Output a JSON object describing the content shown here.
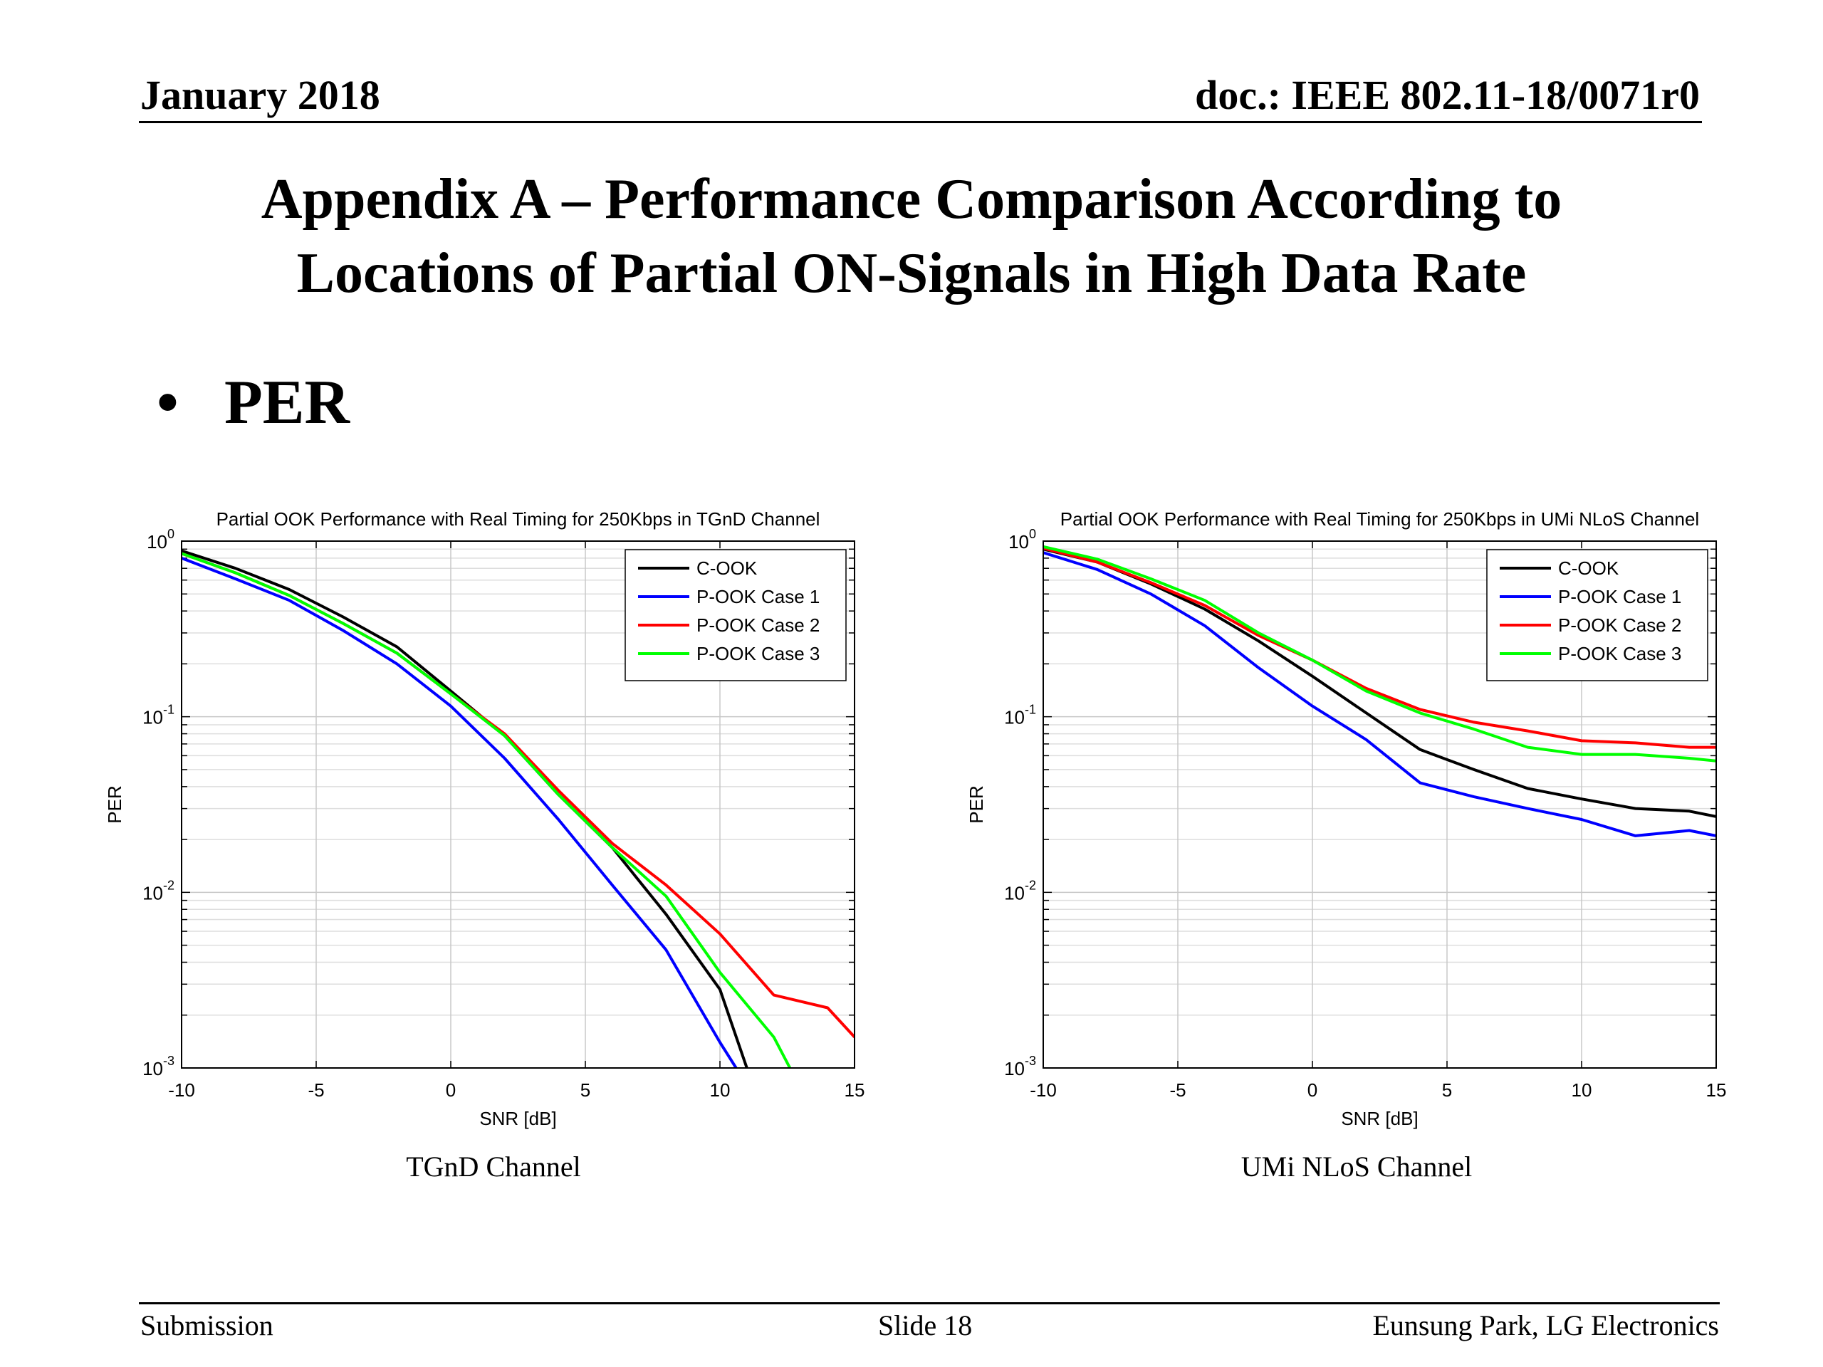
{
  "header": {
    "date": "January 2018",
    "doc": "doc.: IEEE 802.11-18/0071r0"
  },
  "title": {
    "line1": "Appendix A – Performance Comparison According to",
    "line2": "Locations of Partial ON-Signals in High Data Rate"
  },
  "bullet": {
    "marker": "•",
    "text": "PER"
  },
  "captions": {
    "left": "TGnD Channel",
    "right": "UMi NLoS Channel"
  },
  "footer": {
    "left": "Submission",
    "center": "Slide 18",
    "right": "Eunsung Park, LG Electronics"
  },
  "chart_data": [
    {
      "type": "line",
      "title": "Partial OOK Performance with Real Timing for 250Kbps in TGnD Channel",
      "xlabel": "SNR [dB]",
      "ylabel": "PER",
      "xlim": [
        -10,
        15
      ],
      "ylim": [
        0.001,
        1
      ],
      "yscale": "log",
      "grid": true,
      "legend_position": "top-right",
      "x_ticks": [
        "-10",
        "-5",
        "0",
        "5",
        "10",
        "15"
      ],
      "y_ticks": [
        {
          "base": "10",
          "exp": "0",
          "value": 1
        },
        {
          "base": "10",
          "exp": "-1",
          "value": 0.1
        },
        {
          "base": "10",
          "exp": "-2",
          "value": 0.01
        },
        {
          "base": "10",
          "exp": "-3",
          "value": 0.001
        }
      ],
      "series": [
        {
          "name": "C-OOK",
          "color": "#000000",
          "x": [
            -10,
            -8,
            -6,
            -4,
            -2,
            0,
            2,
            4,
            6,
            8,
            10,
            11
          ],
          "y": [
            0.88,
            0.7,
            0.53,
            0.37,
            0.25,
            0.14,
            0.078,
            0.036,
            0.018,
            0.0075,
            0.0028,
            0.001
          ]
        },
        {
          "name": "P-OOK Case 1",
          "color": "#0000ff",
          "x": [
            -10,
            -8,
            -6,
            -4,
            -2,
            0,
            2,
            4,
            6,
            8,
            10,
            10.6
          ],
          "y": [
            0.8,
            0.61,
            0.46,
            0.31,
            0.2,
            0.115,
            0.058,
            0.026,
            0.011,
            0.0047,
            0.0014,
            0.001
          ]
        },
        {
          "name": "P-OOK Case 2",
          "color": "#ff0000",
          "x": [
            -10,
            -8,
            -6,
            -4,
            -2,
            0,
            2,
            4,
            6,
            8,
            10,
            12,
            14,
            15
          ],
          "y": [
            0.85,
            0.66,
            0.49,
            0.34,
            0.23,
            0.135,
            0.08,
            0.038,
            0.019,
            0.011,
            0.0058,
            0.0026,
            0.0022,
            0.0015
          ]
        },
        {
          "name": "P-OOK Case 3",
          "color": "#00ff00",
          "x": [
            -10,
            -8,
            -6,
            -4,
            -2,
            0,
            2,
            4,
            6,
            8,
            10,
            12,
            12.6
          ],
          "y": [
            0.85,
            0.66,
            0.49,
            0.34,
            0.23,
            0.135,
            0.078,
            0.036,
            0.018,
            0.0095,
            0.0035,
            0.0015,
            0.001
          ]
        }
      ]
    },
    {
      "type": "line",
      "title": "Partial OOK Performance with Real Timing for 250Kbps in UMi NLoS Channel",
      "xlabel": "SNR [dB]",
      "ylabel": "PER",
      "xlim": [
        -10,
        15
      ],
      "ylim": [
        0.001,
        1
      ],
      "yscale": "log",
      "grid": true,
      "legend_position": "top-right",
      "x_ticks": [
        "-10",
        "-5",
        "0",
        "5",
        "10",
        "15"
      ],
      "y_ticks": [
        {
          "base": "10",
          "exp": "0",
          "value": 1
        },
        {
          "base": "10",
          "exp": "-1",
          "value": 0.1
        },
        {
          "base": "10",
          "exp": "-2",
          "value": 0.01
        },
        {
          "base": "10",
          "exp": "-3",
          "value": 0.001
        }
      ],
      "series": [
        {
          "name": "C-OOK",
          "color": "#000000",
          "x": [
            -10,
            -8,
            -6,
            -4,
            -2,
            0,
            2,
            4,
            6,
            8,
            10,
            12,
            14,
            15
          ],
          "y": [
            0.9,
            0.76,
            0.57,
            0.41,
            0.27,
            0.17,
            0.105,
            0.065,
            0.05,
            0.039,
            0.034,
            0.03,
            0.029,
            0.027
          ]
        },
        {
          "name": "P-OOK Case 1",
          "color": "#0000ff",
          "x": [
            -10,
            -8,
            -6,
            -4,
            -2,
            0,
            2,
            4,
            6,
            8,
            10,
            12,
            14,
            15
          ],
          "y": [
            0.86,
            0.69,
            0.5,
            0.33,
            0.19,
            0.115,
            0.074,
            0.042,
            0.035,
            0.03,
            0.026,
            0.021,
            0.0225,
            0.021
          ]
        },
        {
          "name": "P-OOK Case 2",
          "color": "#ff0000",
          "x": [
            -10,
            -8,
            -6,
            -4,
            -2,
            0,
            2,
            4,
            6,
            8,
            10,
            12,
            14,
            15
          ],
          "y": [
            0.91,
            0.76,
            0.58,
            0.43,
            0.29,
            0.21,
            0.145,
            0.11,
            0.093,
            0.083,
            0.073,
            0.071,
            0.067,
            0.067
          ]
        },
        {
          "name": "P-OOK Case 3",
          "color": "#00ff00",
          "x": [
            -10,
            -8,
            -6,
            -4,
            -2,
            0,
            2,
            4,
            6,
            8,
            10,
            12,
            14,
            15
          ],
          "y": [
            0.93,
            0.79,
            0.61,
            0.46,
            0.3,
            0.21,
            0.14,
            0.105,
            0.085,
            0.067,
            0.061,
            0.061,
            0.058,
            0.056
          ]
        }
      ]
    }
  ]
}
